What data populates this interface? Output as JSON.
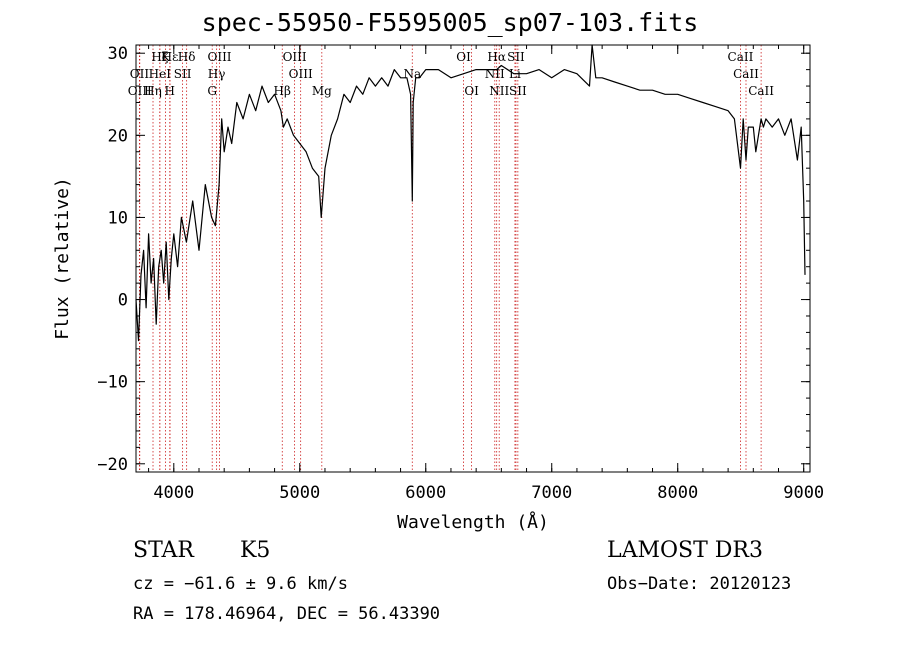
{
  "chart_data": {
    "type": "line",
    "title": "spec-55950-F5595005_sp07-103.fits",
    "xlabel": "Wavelength (Å)",
    "ylabel": "Flux (relative)",
    "xlim": [
      3700,
      9050
    ],
    "ylim": [
      -21,
      31
    ],
    "xticks": [
      4000,
      5000,
      6000,
      7000,
      8000,
      9000
    ],
    "yticks": [
      -20,
      -10,
      0,
      10,
      20,
      30
    ],
    "grid": false,
    "series": [
      {
        "name": "spectrum",
        "color": "#000000",
        "x": [
          3700,
          3720,
          3740,
          3760,
          3780,
          3800,
          3820,
          3840,
          3860,
          3880,
          3900,
          3920,
          3940,
          3960,
          3980,
          4000,
          4030,
          4060,
          4100,
          4150,
          4200,
          4250,
          4300,
          4330,
          4360,
          4380,
          4400,
          4430,
          4460,
          4500,
          4550,
          4600,
          4650,
          4700,
          4750,
          4800,
          4850,
          4870,
          4900,
          4950,
          5000,
          5050,
          5100,
          5150,
          5170,
          5180,
          5200,
          5250,
          5300,
          5350,
          5400,
          5450,
          5500,
          5550,
          5600,
          5650,
          5700,
          5750,
          5800,
          5850,
          5880,
          5893,
          5900,
          5920,
          5950,
          6000,
          6100,
          6200,
          6300,
          6400,
          6500,
          6563,
          6600,
          6700,
          6800,
          6900,
          7000,
          7100,
          7200,
          7300,
          7320,
          7350,
          7400,
          7500,
          7600,
          7700,
          7800,
          7900,
          8000,
          8100,
          8200,
          8300,
          8400,
          8450,
          8498,
          8520,
          8542,
          8560,
          8600,
          8620,
          8662,
          8680,
          8700,
          8750,
          8800,
          8850,
          8900,
          8950,
          8980,
          9000,
          9010
        ],
        "y": [
          0,
          -5,
          3,
          6,
          -1,
          8,
          2,
          5,
          -3,
          4,
          6,
          2,
          7,
          0,
          5,
          8,
          4,
          10,
          7,
          12,
          6,
          14,
          10,
          9,
          14,
          22,
          18,
          21,
          19,
          24,
          22,
          25,
          23,
          26,
          24,
          25,
          23,
          21,
          22,
          20,
          19,
          18,
          16,
          15,
          10,
          12,
          16,
          20,
          22,
          25,
          24,
          26,
          25,
          27,
          26,
          27,
          26,
          28,
          27,
          27,
          25,
          12,
          24,
          27,
          27,
          28,
          28,
          27,
          27.5,
          28,
          28,
          28,
          28.5,
          27.5,
          27.5,
          28,
          27,
          28,
          27.5,
          26,
          31,
          27,
          27,
          26.5,
          26,
          25.5,
          25.5,
          25,
          25,
          24.5,
          24,
          23.5,
          23,
          22,
          16,
          22,
          17,
          21,
          21,
          18,
          22,
          21,
          22,
          21,
          22,
          20,
          22,
          17,
          21,
          12,
          3
        ]
      }
    ],
    "lines": [
      {
        "name": "Hε",
        "x": 3970,
        "row": 1
      },
      {
        "name": "OII",
        "x": 3727,
        "row": 2
      },
      {
        "name": "OIII",
        "x": 3730,
        "row": 3
      },
      {
        "name": "Hζ",
        "x": 3889,
        "row": 1
      },
      {
        "name": "K",
        "x": 3934,
        "row": 1
      },
      {
        "name": "HeI",
        "x": 3889,
        "row": 2
      },
      {
        "name": "SII",
        "x": 4070,
        "row": 2
      },
      {
        "name": "Hη",
        "x": 3835,
        "row": 3
      },
      {
        "name": "H",
        "x": 3968,
        "row": 3
      },
      {
        "name": "Hδ",
        "x": 4102,
        "row": 1
      },
      {
        "name": "OIII",
        "x": 4363,
        "row": 1
      },
      {
        "name": "Hγ",
        "x": 4340,
        "row": 2
      },
      {
        "name": "G",
        "x": 4305,
        "row": 3
      },
      {
        "name": "OIII",
        "x": 4959,
        "row": 1
      },
      {
        "name": "OIII",
        "x": 5007,
        "row": 2
      },
      {
        "name": "Hβ",
        "x": 4861,
        "row": 3
      },
      {
        "name": "Mg",
        "x": 5175,
        "row": 3
      },
      {
        "name": "Na",
        "x": 5893,
        "row": 2
      },
      {
        "name": "OI",
        "x": 6300,
        "row": 1
      },
      {
        "name": "OI",
        "x": 6364,
        "row": 3
      },
      {
        "name": "Hα",
        "x": 6563,
        "row": 1
      },
      {
        "name": "SII",
        "x": 6716,
        "row": 1
      },
      {
        "name": "NII",
        "x": 6548,
        "row": 2
      },
      {
        "name": "Li",
        "x": 6708,
        "row": 2
      },
      {
        "name": "NII",
        "x": 6583,
        "row": 3
      },
      {
        "name": "SII",
        "x": 6731,
        "row": 3
      },
      {
        "name": "CaII",
        "x": 8498,
        "row": 1
      },
      {
        "name": "CaII",
        "x": 8542,
        "row": 2
      },
      {
        "name": "CaII",
        "x": 8662,
        "row": 3
      }
    ]
  },
  "info": {
    "object_type": "STAR",
    "subclass": "K5",
    "survey": "LAMOST DR3",
    "cz": "cz = −61.6 ± 9.6 km/s",
    "obs_date": "Obs−Date: 20120123",
    "radec": "RA = 178.46964, DEC =  56.43390"
  }
}
